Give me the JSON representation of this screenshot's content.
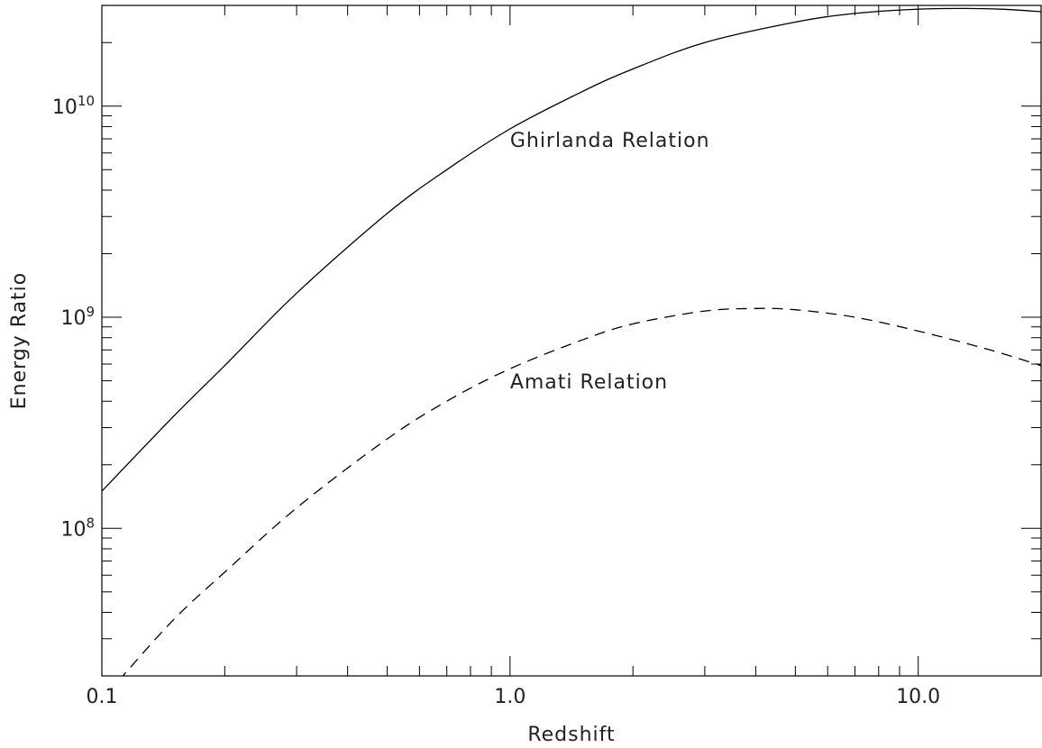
{
  "chart_data": {
    "type": "line",
    "xlabel": "Redshift",
    "ylabel": "Energy Ratio",
    "xscale": "log",
    "yscale": "log",
    "xlim": [
      0.1,
      20
    ],
    "ylim": [
      20000000,
      30000000000
    ],
    "grid": false,
    "x_ticks": [
      {
        "value": 0.1,
        "label": "0.1"
      },
      {
        "value": 1.0,
        "label": "1.0"
      },
      {
        "value": 10.0,
        "label": "10.0"
      }
    ],
    "y_ticks": [
      {
        "value": 100000000,
        "base": "10",
        "exp": "8"
      },
      {
        "value": 1000000000,
        "base": "10",
        "exp": "9"
      },
      {
        "value": 10000000000,
        "base": "10",
        "exp": "10"
      }
    ],
    "series": [
      {
        "name": "Ghirlanda Relation",
        "line_style": "solid",
        "color": "#000000",
        "x": [
          0.1,
          0.15,
          0.2,
          0.3,
          0.5,
          0.7,
          1.0,
          1.5,
          2.0,
          3.0,
          5.0,
          7.0,
          10.0,
          13.0,
          16.0,
          20.0
        ],
        "y": [
          150000000,
          340000000,
          590000000,
          1300000000,
          3100000000,
          5000000000,
          7800000000,
          11700000000,
          15000000000,
          20000000000,
          25000000000,
          27500000000,
          28800000000,
          29000000000,
          28800000000,
          28000000000
        ]
      },
      {
        "name": "Amati Relation",
        "line_style": "dashed",
        "color": "#000000",
        "x": [
          0.11,
          0.15,
          0.2,
          0.3,
          0.5,
          0.7,
          1.0,
          1.5,
          2.0,
          3.0,
          4.0,
          5.0,
          7.0,
          10.0,
          15.0,
          20.0
        ],
        "y": [
          19000000,
          37000000,
          62000000,
          125000000,
          265000000,
          400000000,
          570000000,
          780000000,
          930000000,
          1070000000,
          1100000000,
          1085000000,
          1000000000,
          860000000,
          700000000,
          590000000
        ]
      }
    ],
    "annotations": [
      {
        "text": "Ghirlanda Relation",
        "x": 1.0,
        "y": 6400000000
      },
      {
        "text": "Amati Relation",
        "x": 1.0,
        "y": 460000000
      }
    ]
  }
}
